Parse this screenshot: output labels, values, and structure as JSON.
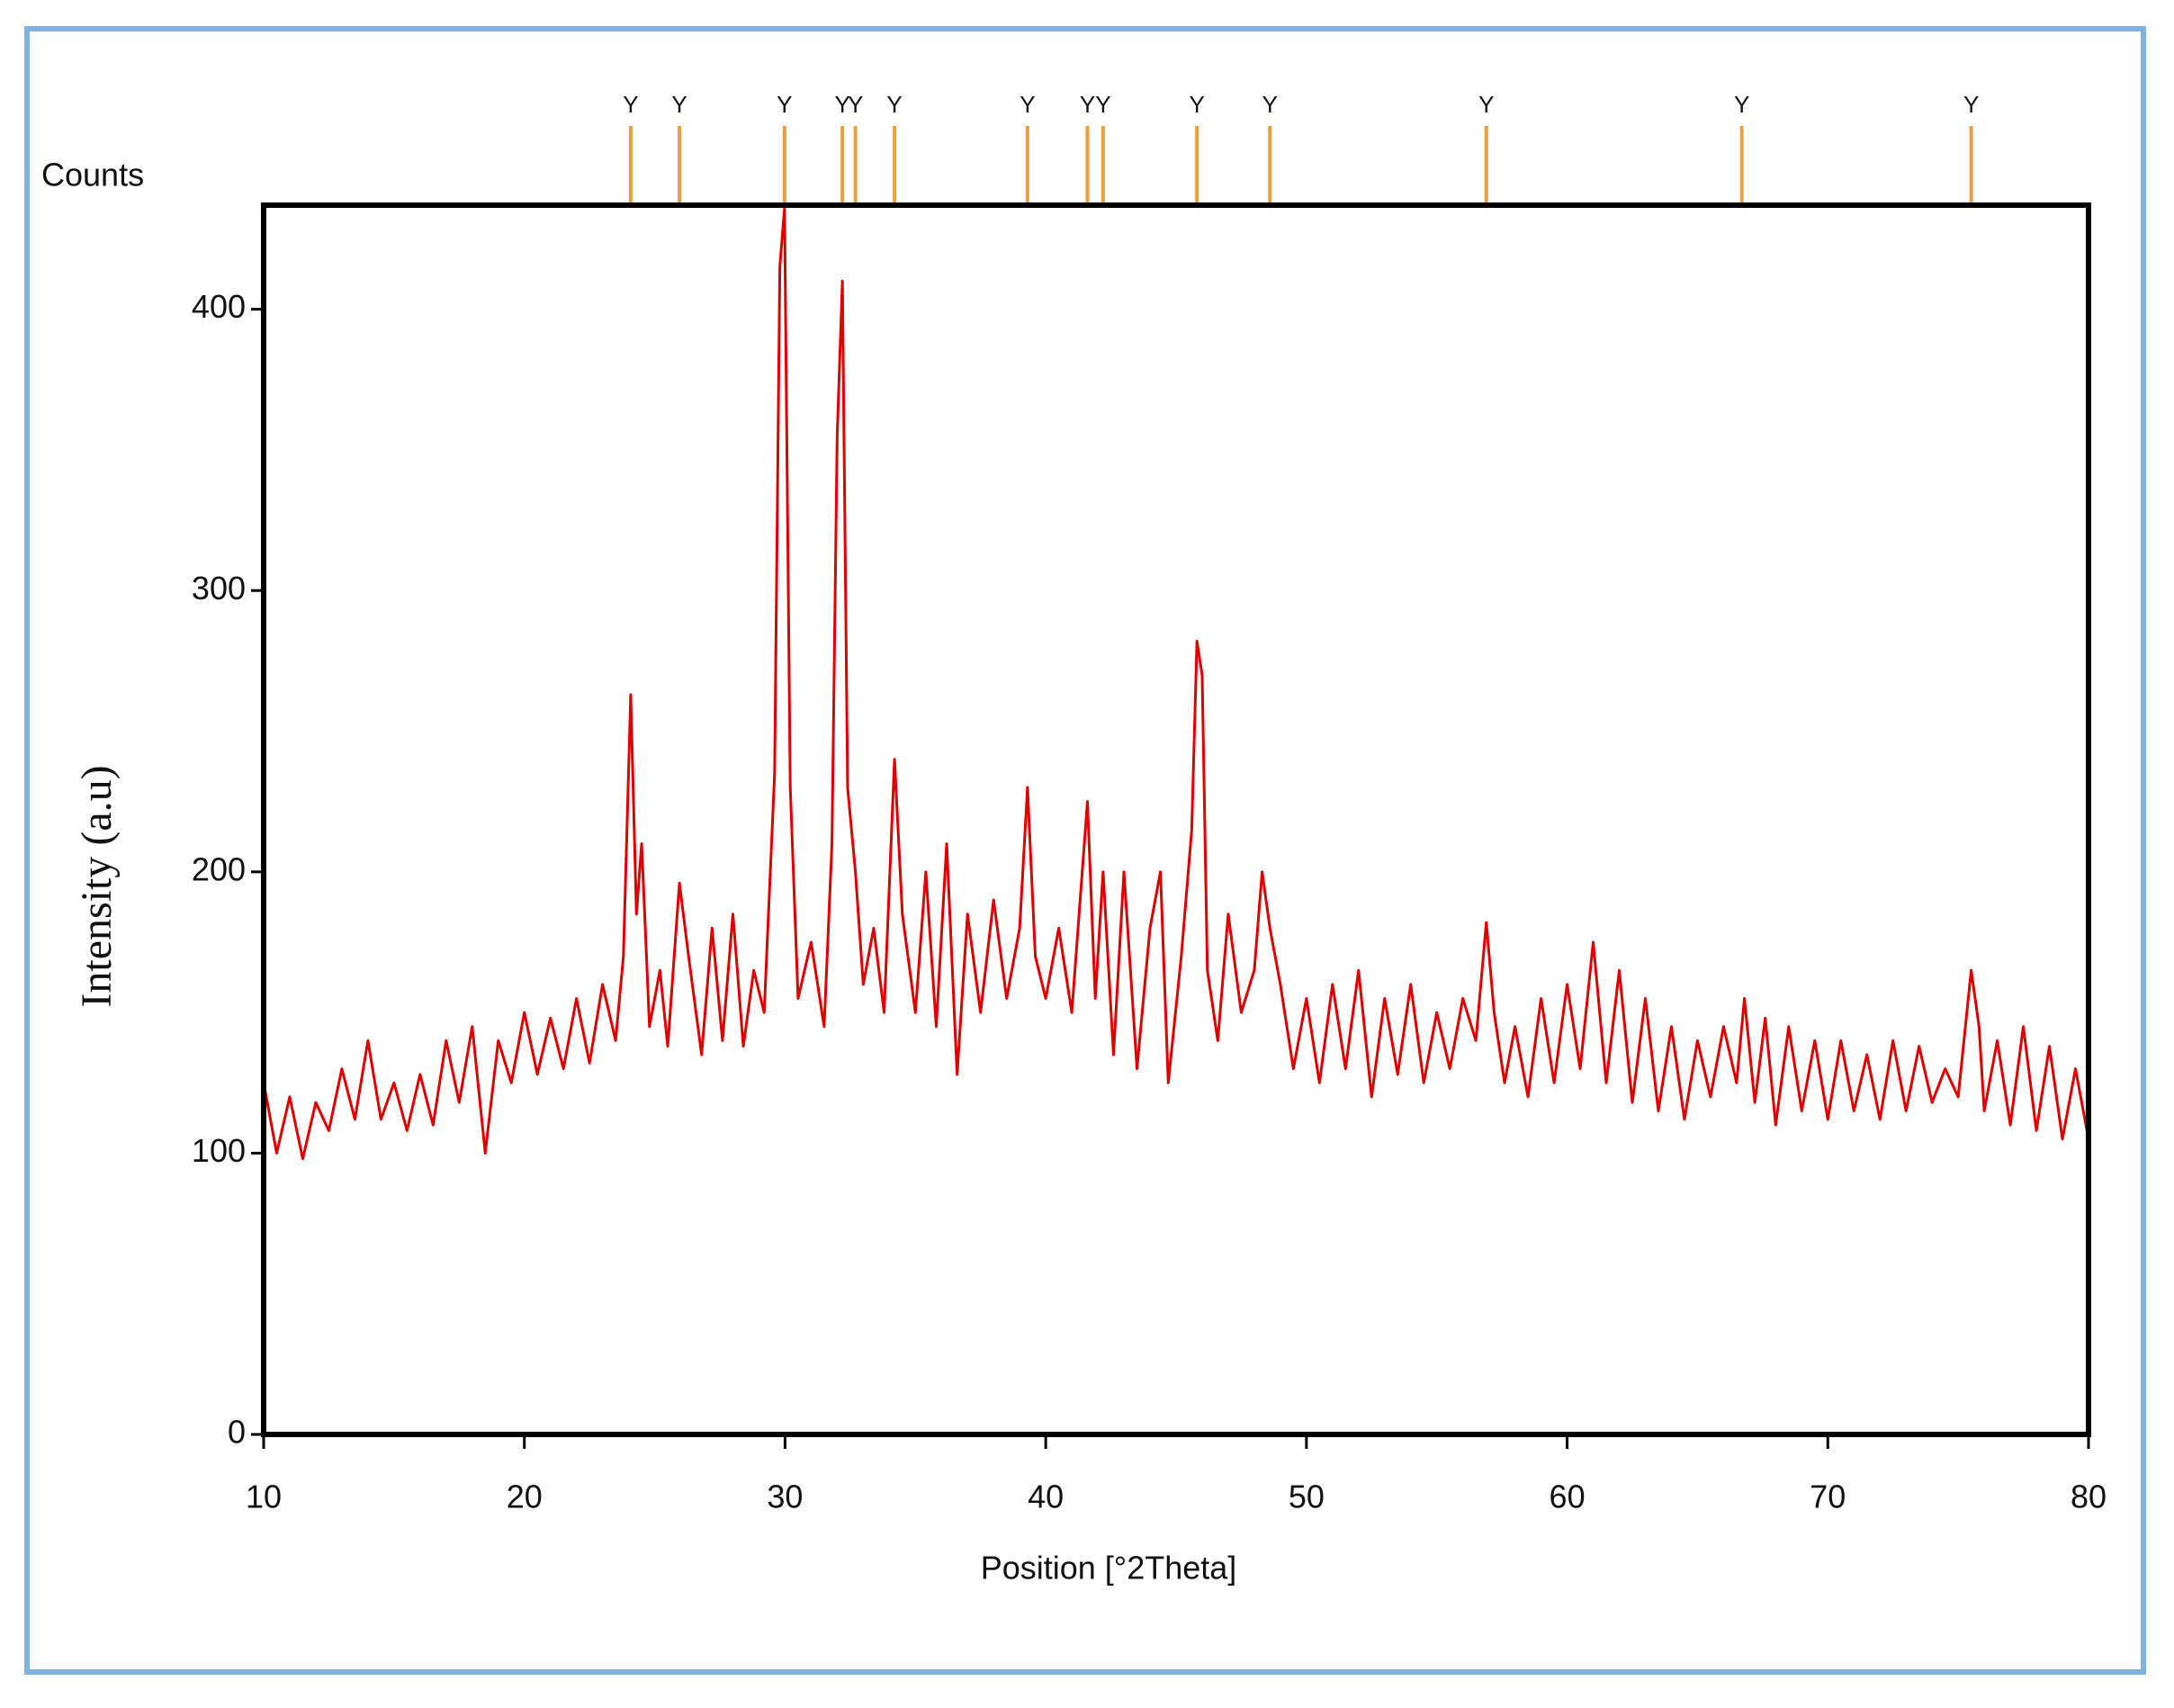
{
  "chart_data": {
    "type": "line",
    "y_unit_label": "Counts",
    "ylabel": "Intensity (a.u)",
    "xlabel": "Position [°2Theta]",
    "color": "#e00000",
    "xlim": [
      10,
      80
    ],
    "xticks": [
      10,
      20,
      30,
      40,
      50,
      60,
      70,
      80
    ],
    "ylim": [
      0,
      437
    ],
    "yticks": [
      0,
      100,
      200,
      300,
      400
    ],
    "x": [
      10,
      10.5,
      11,
      11.5,
      12,
      12.5,
      13,
      13.5,
      14,
      14.5,
      15,
      15.5,
      16,
      16.5,
      17,
      17.5,
      18,
      18.5,
      19,
      19.5,
      20,
      20.5,
      21,
      21.5,
      22,
      22.5,
      23,
      23.5,
      23.8,
      24.08,
      24.3,
      24.5,
      24.8,
      25.2,
      25.5,
      25.95,
      26.3,
      26.8,
      27.2,
      27.6,
      28,
      28.4,
      28.8,
      29.2,
      29.6,
      29.8,
      29.98,
      30.2,
      30.5,
      31,
      31.5,
      31.8,
      32,
      32.2,
      32.4,
      32.7,
      33,
      33.4,
      33.8,
      34.2,
      34.5,
      35,
      35.4,
      35.8,
      36.2,
      36.6,
      37,
      37.5,
      38,
      38.5,
      39,
      39.3,
      39.6,
      40,
      40.5,
      41,
      41.6,
      41.9,
      42.2,
      42.6,
      43,
      43.5,
      44,
      44.4,
      44.7,
      45.2,
      45.6,
      45.8,
      46,
      46.2,
      46.6,
      47,
      47.5,
      48,
      48.3,
      48.6,
      49,
      49.5,
      50,
      50.5,
      51,
      51.5,
      52,
      52.5,
      53,
      53.5,
      54,
      54.5,
      55,
      55.5,
      56,
      56.5,
      56.9,
      57.2,
      57.6,
      58,
      58.5,
      59,
      59.5,
      60,
      60.5,
      61,
      61.5,
      62,
      62.5,
      63,
      63.5,
      64,
      64.5,
      65,
      65.5,
      66,
      66.5,
      66.8,
      67.2,
      67.6,
      68,
      68.5,
      69,
      69.5,
      70,
      70.5,
      71,
      71.5,
      72,
      72.5,
      73,
      73.5,
      74,
      74.5,
      75,
      75.5,
      75.8,
      76,
      76.5,
      77,
      77.5,
      78,
      78.5,
      79,
      79.5,
      80
    ],
    "values": [
      125,
      100,
      120,
      98,
      118,
      108,
      130,
      112,
      140,
      112,
      125,
      108,
      128,
      110,
      140,
      118,
      145,
      100,
      140,
      125,
      150,
      128,
      148,
      130,
      155,
      132,
      160,
      140,
      170,
      263,
      185,
      210,
      145,
      165,
      138,
      196,
      170,
      135,
      180,
      140,
      185,
      138,
      165,
      150,
      235,
      415,
      436,
      230,
      155,
      175,
      145,
      210,
      355,
      410,
      230,
      200,
      160,
      180,
      150,
      240,
      185,
      150,
      200,
      145,
      210,
      128,
      185,
      150,
      190,
      155,
      180,
      230,
      170,
      155,
      180,
      150,
      225,
      155,
      200,
      135,
      200,
      130,
      180,
      200,
      125,
      170,
      215,
      282,
      270,
      165,
      140,
      185,
      150,
      165,
      200,
      180,
      160,
      130,
      155,
      125,
      160,
      130,
      165,
      120,
      155,
      128,
      160,
      125,
      150,
      130,
      155,
      140,
      182,
      150,
      125,
      145,
      120,
      155,
      125,
      160,
      130,
      175,
      125,
      165,
      118,
      155,
      115,
      145,
      112,
      140,
      120,
      145,
      125,
      155,
      118,
      148,
      110,
      145,
      115,
      140,
      112,
      140,
      115,
      135,
      112,
      140,
      115,
      138,
      118,
      130,
      120,
      165,
      145,
      115,
      140,
      110,
      145,
      108,
      138,
      105,
      130,
      105
    ],
    "markers": {
      "color": "#e8a040",
      "items": [
        {
          "x": 24.08,
          "label": "Y"
        },
        {
          "x": 25.95,
          "label": "Y"
        },
        {
          "x": 29.98,
          "label": "Y"
        },
        {
          "x": 32.2,
          "label": "Y"
        },
        {
          "x": 32.7,
          "label": "Y"
        },
        {
          "x": 34.2,
          "label": "Y"
        },
        {
          "x": 39.3,
          "label": "Y"
        },
        {
          "x": 41.6,
          "label": "Y"
        },
        {
          "x": 42.2,
          "label": "Y"
        },
        {
          "x": 45.8,
          "label": "Y"
        },
        {
          "x": 48.6,
          "label": "Y"
        },
        {
          "x": 56.9,
          "label": "Y"
        },
        {
          "x": 66.7,
          "label": "Y"
        },
        {
          "x": 75.5,
          "label": "Y"
        }
      ]
    }
  }
}
